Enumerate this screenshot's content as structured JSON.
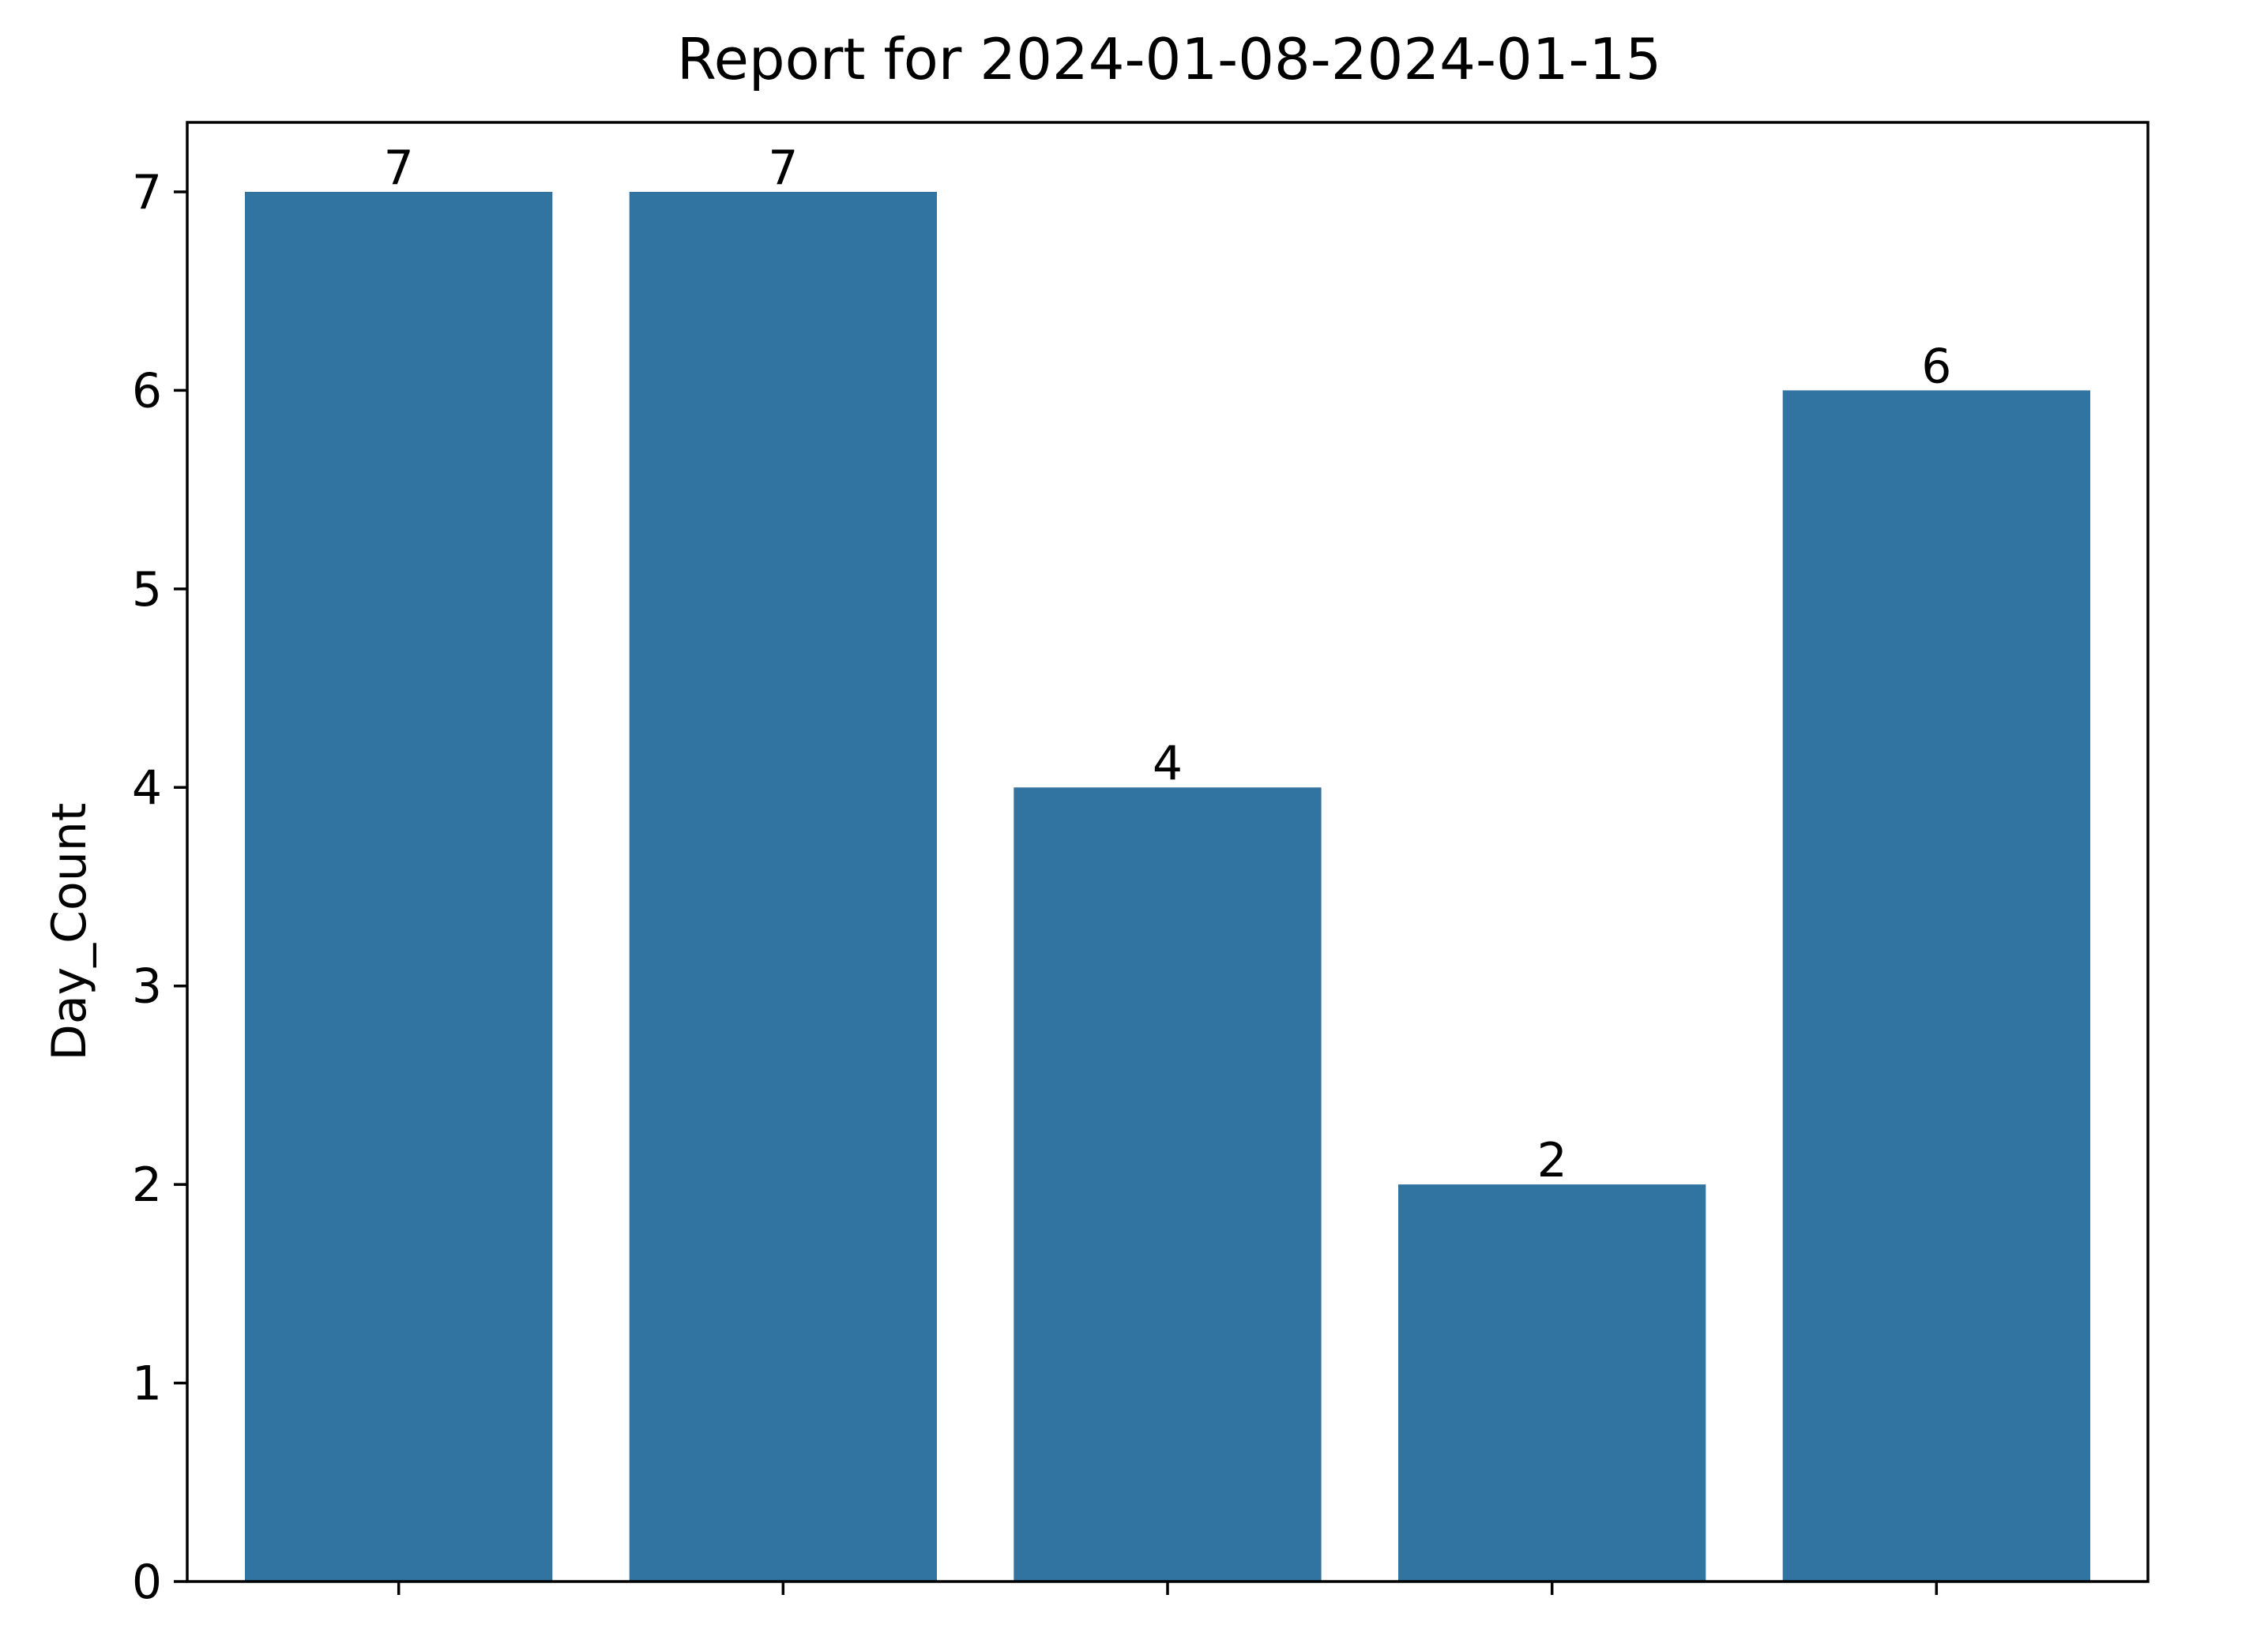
{
  "chart_data": {
    "type": "bar",
    "title": "Report for 2024-01-08-2024-01-15",
    "xlabel": "",
    "ylabel": "Day_Count",
    "categories": [
      "",
      "",
      "",
      "",
      ""
    ],
    "values": [
      7,
      7,
      4,
      2,
      6
    ],
    "data_labels": [
      "7",
      "7",
      "4",
      "2",
      "6"
    ],
    "yticks": [
      0,
      1,
      2,
      3,
      4,
      5,
      6,
      7
    ],
    "ylim": [
      0,
      7.35
    ],
    "grid": false,
    "legend": "none",
    "bar_color": "#3274a1"
  }
}
